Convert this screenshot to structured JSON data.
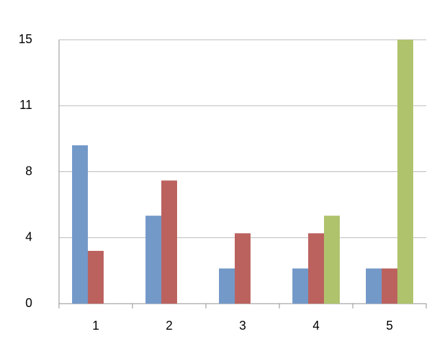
{
  "chart_data": {
    "type": "bar",
    "categories": [
      "1",
      "2",
      "3",
      "4",
      "5"
    ],
    "series": [
      {
        "color": "#7399c9",
        "values": [
          9,
          5,
          2,
          2,
          2
        ]
      },
      {
        "color": "#bb625f",
        "values": [
          3,
          7,
          4,
          4,
          2
        ]
      },
      {
        "color": "#afc36c",
        "values": [
          null,
          null,
          null,
          5,
          15
        ]
      }
    ],
    "ylim": [
      0,
      15
    ],
    "yticks": [
      0,
      {
        "value": 3.75,
        "label": "4"
      },
      {
        "value": 7.5,
        "label": "8"
      },
      {
        "value": 11.25,
        "label": "11"
      },
      15
    ],
    "grid": true
  }
}
